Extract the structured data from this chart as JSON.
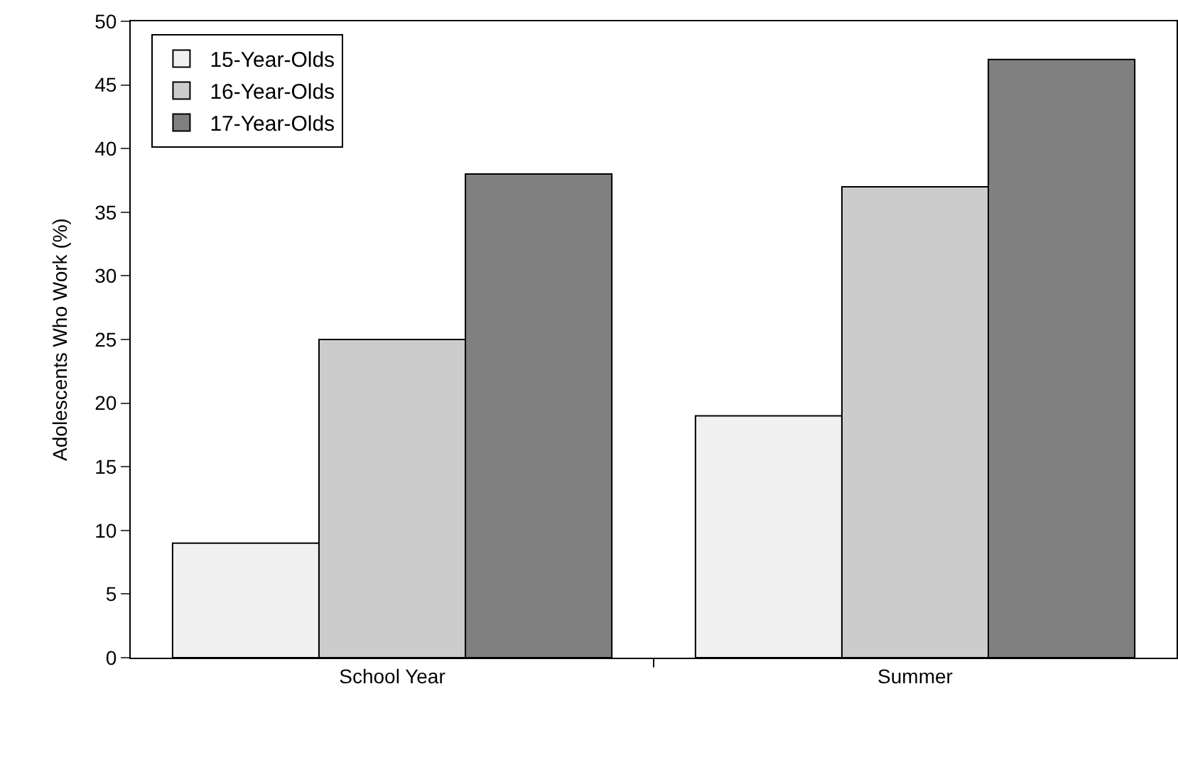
{
  "chart_data": {
    "type": "bar",
    "ylabel": "Adolescents Who Work (%)",
    "categories": [
      "School Year",
      "Summer"
    ],
    "series": [
      {
        "name": "15-Year-Olds",
        "color": "#f0f0f0",
        "values": [
          9,
          19
        ]
      },
      {
        "name": "16-Year-Olds",
        "color": "#cccccc",
        "values": [
          25,
          37
        ]
      },
      {
        "name": "17-Year-Olds",
        "color": "#808080",
        "values": [
          38,
          47
        ]
      }
    ],
    "ylim": [
      0,
      50
    ],
    "yticks": [
      0,
      5,
      10,
      15,
      20,
      25,
      30,
      35,
      40,
      45,
      50
    ],
    "legend": "top left"
  }
}
